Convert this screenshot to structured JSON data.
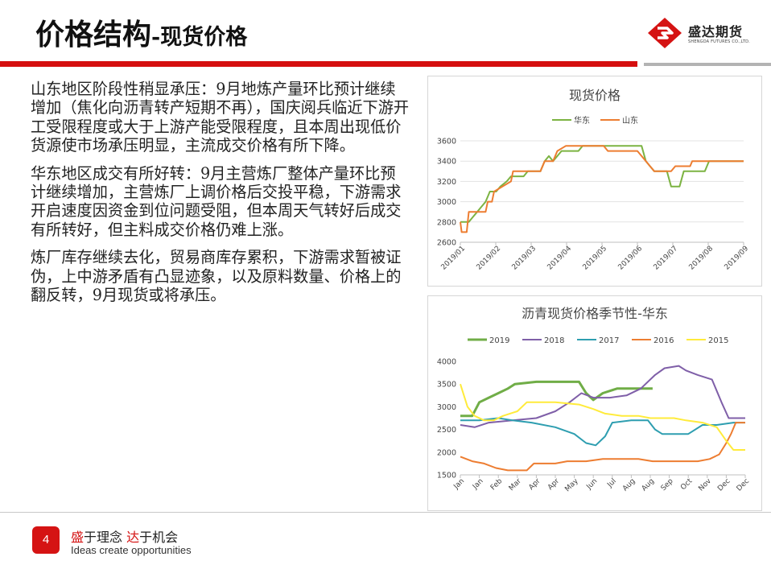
{
  "header": {
    "title_main": "价格结构",
    "title_sub": "-现货价格",
    "logo_name": "盛达期货",
    "logo_en": "SHENGDA FUTURES CO.,LTD."
  },
  "colors": {
    "brand_red": "#d50f0f",
    "divider_gray": "#b3b3b3"
  },
  "body": {
    "paragraphs": [
      "山东地区阶段性稍显承压：9月地炼产量环比预计继续增加（焦化向沥青转产短期不再），国庆阅兵临近下游开工受限程度或大于上游产能受限程度，且本周出现低价货源使市场承压明显，主流成交价格有所下降。",
      "华东地区成交有所好转：9月主营炼厂整体产量环比预计继续增加，主营炼厂上调价格后交投平稳，下游需求开启速度因资金到位问题受阻，但本周天气转好后成交有所转好，但主料成交价格仍难上涨。",
      "炼厂库存继续去化，贸易商库存累积，下游需求暂被证伪，上中游矛盾有凸显迹象，以及原料数量、价格上的翻反转，9月现货或将承压。"
    ]
  },
  "footer": {
    "page_number": "4",
    "slogan_cn_1": "盛",
    "slogan_cn_2": "于理念 ",
    "slogan_cn_3": "达",
    "slogan_cn_4": "于机会",
    "slogan_en": "Ideas create opportunities"
  },
  "chart_data": [
    {
      "type": "line",
      "title": "现货价格",
      "legend_position": "top",
      "grid": true,
      "ylim": [
        2600,
        3600
      ],
      "yticks": [
        2600,
        2800,
        3000,
        3200,
        3400,
        3600
      ],
      "x_range": [
        2019.0,
        2019.672
      ],
      "xticks": [
        "2019/01",
        "2019/02",
        "2019/03",
        "2019/04",
        "2019/05",
        "2019/06",
        "2019/07",
        "2019/08",
        "2019/09"
      ],
      "series": [
        {
          "name": "华东",
          "color": "#7cb342",
          "points": [
            [
              2019.0,
              2800
            ],
            [
              2019.02,
              2800
            ],
            [
              2019.03,
              2850
            ],
            [
              2019.04,
              2900
            ],
            [
              2019.05,
              2950
            ],
            [
              2019.06,
              3000
            ],
            [
              2019.07,
              3100
            ],
            [
              2019.085,
              3100
            ],
            [
              2019.095,
              3150
            ],
            [
              2019.11,
              3200
            ],
            [
              2019.12,
              3250
            ],
            [
              2019.15,
              3250
            ],
            [
              2019.16,
              3300
            ],
            [
              2019.19,
              3300
            ],
            [
              2019.2,
              3400
            ],
            [
              2019.21,
              3450
            ],
            [
              2019.22,
              3400
            ],
            [
              2019.23,
              3450
            ],
            [
              2019.24,
              3500
            ],
            [
              2019.28,
              3500
            ],
            [
              2019.29,
              3550
            ],
            [
              2019.43,
              3550
            ],
            [
              2019.44,
              3400
            ],
            [
              2019.45,
              3350
            ],
            [
              2019.46,
              3300
            ],
            [
              2019.49,
              3300
            ],
            [
              2019.5,
              3150
            ],
            [
              2019.52,
              3150
            ],
            [
              2019.53,
              3300
            ],
            [
              2019.58,
              3300
            ],
            [
              2019.59,
              3400
            ],
            [
              2019.672,
              3400
            ]
          ]
        },
        {
          "name": "山东",
          "color": "#ed7d31",
          "points": [
            [
              2019.0,
              2800
            ],
            [
              2019.003,
              2700
            ],
            [
              2019.015,
              2700
            ],
            [
              2019.02,
              2900
            ],
            [
              2019.06,
              2900
            ],
            [
              2019.065,
              3000
            ],
            [
              2019.075,
              3000
            ],
            [
              2019.08,
              3100
            ],
            [
              2019.1,
              3150
            ],
            [
              2019.12,
              3200
            ],
            [
              2019.125,
              3300
            ],
            [
              2019.19,
              3300
            ],
            [
              2019.2,
              3400
            ],
            [
              2019.22,
              3400
            ],
            [
              2019.23,
              3500
            ],
            [
              2019.25,
              3550
            ],
            [
              2019.34,
              3550
            ],
            [
              2019.35,
              3500
            ],
            [
              2019.42,
              3500
            ],
            [
              2019.43,
              3450
            ],
            [
              2019.44,
              3400
            ],
            [
              2019.45,
              3350
            ],
            [
              2019.46,
              3300
            ],
            [
              2019.5,
              3300
            ],
            [
              2019.51,
              3350
            ],
            [
              2019.545,
              3350
            ],
            [
              2019.55,
              3400
            ],
            [
              2019.672,
              3400
            ]
          ]
        }
      ]
    },
    {
      "type": "line",
      "title": "沥青现货价格季节性-华东",
      "legend_position": "top",
      "grid": false,
      "ylim": [
        1500,
        4000
      ],
      "yticks": [
        1500,
        2000,
        2500,
        3000,
        3500,
        4000
      ],
      "x_range": [
        0,
        12
      ],
      "xticks": [
        "Jan",
        "Jan",
        "Feb",
        "Mar",
        "Apr",
        "Apr",
        "May",
        "Jun",
        "Jul",
        "Aug",
        "Aug",
        "Sep",
        "Oct",
        "Nov",
        "Dec",
        "Dec"
      ],
      "series": [
        {
          "name": "2019",
          "color": "#70ad47",
          "width": 3,
          "points": [
            [
              0,
              2800
            ],
            [
              0.5,
              2800
            ],
            [
              0.8,
              3100
            ],
            [
              1.2,
              3200
            ],
            [
              1.6,
              3300
            ],
            [
              2.0,
              3400
            ],
            [
              2.3,
              3500
            ],
            [
              3.2,
              3550
            ],
            [
              5.0,
              3550
            ],
            [
              5.3,
              3300
            ],
            [
              5.6,
              3150
            ],
            [
              6.0,
              3300
            ],
            [
              6.6,
              3400
            ],
            [
              8.1,
              3400
            ]
          ]
        },
        {
          "name": "2018",
          "color": "#7f5fa8",
          "points": [
            [
              0,
              2600
            ],
            [
              0.6,
              2550
            ],
            [
              1.2,
              2650
            ],
            [
              2.2,
              2700
            ],
            [
              3.2,
              2750
            ],
            [
              4.0,
              2900
            ],
            [
              4.6,
              3100
            ],
            [
              5.1,
              3300
            ],
            [
              5.6,
              3200
            ],
            [
              6.3,
              3200
            ],
            [
              7.0,
              3250
            ],
            [
              7.6,
              3400
            ],
            [
              8.2,
              3700
            ],
            [
              8.6,
              3850
            ],
            [
              9.2,
              3900
            ],
            [
              9.5,
              3800
            ],
            [
              10.0,
              3700
            ],
            [
              10.6,
              3600
            ],
            [
              11.0,
              3100
            ],
            [
              11.3,
              2750
            ],
            [
              12.0,
              2750
            ]
          ]
        },
        {
          "name": "2017",
          "color": "#2e9eb0",
          "points": [
            [
              0,
              2700
            ],
            [
              0.8,
              2700
            ],
            [
              1.6,
              2750
            ],
            [
              2.2,
              2700
            ],
            [
              3.0,
              2650
            ],
            [
              4.0,
              2550
            ],
            [
              4.8,
              2400
            ],
            [
              5.3,
              2200
            ],
            [
              5.7,
              2150
            ],
            [
              6.1,
              2350
            ],
            [
              6.4,
              2650
            ],
            [
              7.2,
              2700
            ],
            [
              7.9,
              2700
            ],
            [
              8.2,
              2500
            ],
            [
              8.5,
              2400
            ],
            [
              9.6,
              2400
            ],
            [
              10.2,
              2600
            ],
            [
              10.8,
              2600
            ],
            [
              11.5,
              2650
            ],
            [
              12.0,
              2650
            ]
          ]
        },
        {
          "name": "2016",
          "color": "#ed7d31",
          "points": [
            [
              0,
              1900
            ],
            [
              0.5,
              1800
            ],
            [
              1.0,
              1750
            ],
            [
              1.5,
              1650
            ],
            [
              2.0,
              1600
            ],
            [
              2.8,
              1600
            ],
            [
              3.1,
              1750
            ],
            [
              4.0,
              1750
            ],
            [
              4.5,
              1800
            ],
            [
              5.3,
              1800
            ],
            [
              6.0,
              1850
            ],
            [
              6.4,
              1850
            ],
            [
              7.5,
              1850
            ],
            [
              8.1,
              1800
            ],
            [
              9.0,
              1800
            ],
            [
              10.0,
              1800
            ],
            [
              10.5,
              1850
            ],
            [
              10.9,
              1950
            ],
            [
              11.2,
              2200
            ],
            [
              11.4,
              2400
            ],
            [
              11.6,
              2650
            ],
            [
              12.0,
              2650
            ]
          ]
        },
        {
          "name": "2015",
          "color": "#ffeb3b",
          "points": [
            [
              0,
              3500
            ],
            [
              0.3,
              3000
            ],
            [
              0.6,
              2800
            ],
            [
              1.0,
              2700
            ],
            [
              1.4,
              2700
            ],
            [
              1.8,
              2800
            ],
            [
              2.4,
              2900
            ],
            [
              2.8,
              3100
            ],
            [
              4.0,
              3100
            ],
            [
              5.0,
              3050
            ],
            [
              5.6,
              2950
            ],
            [
              6.1,
              2850
            ],
            [
              6.8,
              2800
            ],
            [
              7.5,
              2800
            ],
            [
              8.0,
              2750
            ],
            [
              9.0,
              2750
            ],
            [
              9.5,
              2700
            ],
            [
              10.2,
              2650
            ],
            [
              10.8,
              2550
            ],
            [
              11.0,
              2400
            ],
            [
              11.2,
              2250
            ],
            [
              11.5,
              2050
            ],
            [
              12.0,
              2050
            ]
          ]
        }
      ]
    }
  ]
}
